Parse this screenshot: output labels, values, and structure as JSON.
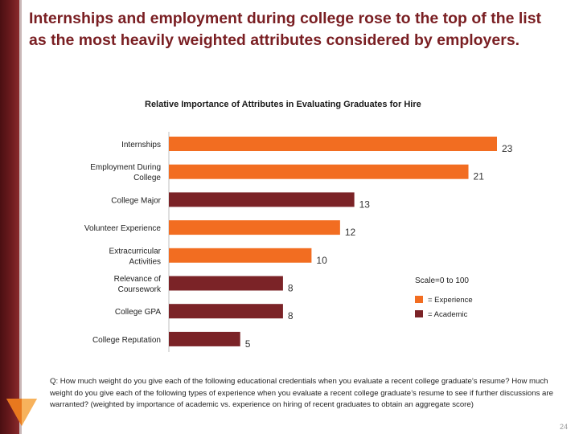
{
  "slide": {
    "title": "Internships and employment during college rose to the top of the list as the most heavily weighted attributes considered by employers.",
    "question": "Q: How much weight do you give each of the following educational credentials when you evaluate a recent college graduate’s resume? How much weight do you give each of the following types of experience when you evaluate a recent college graduate’s resume to see if further discussions are warranted? (weighted by importance of academic vs. experience on hiring of recent graduates to obtain an aggregate score)",
    "page_number": "24"
  },
  "colors": {
    "experience": "#f26d21",
    "academic": "#7b2327",
    "title": "#7a1f23"
  },
  "chart_data": {
    "type": "bar",
    "orientation": "horizontal",
    "title": "Relative Importance of Attributes in Evaluating Graduates for Hire",
    "categories": [
      [
        "Internships"
      ],
      [
        "Employment During",
        "College"
      ],
      [
        "College Major"
      ],
      [
        "Volunteer Experience"
      ],
      [
        "Extracurricular",
        "Activities"
      ],
      [
        "Relevance of",
        "Coursework"
      ],
      [
        "College GPA"
      ],
      [
        "College Reputation"
      ]
    ],
    "values": [
      23,
      21,
      13,
      12,
      10,
      8,
      8,
      5
    ],
    "groups": [
      "experience",
      "experience",
      "academic",
      "experience",
      "experience",
      "academic",
      "academic",
      "academic"
    ],
    "legend": {
      "scale_note": "Scale=0 to 100",
      "items": [
        {
          "group": "experience",
          "label": "= Experience"
        },
        {
          "group": "academic",
          "label": "= Academic"
        }
      ],
      "position": "right"
    },
    "xlim": [
      0,
      23
    ],
    "grid": false,
    "data_labels": true
  }
}
